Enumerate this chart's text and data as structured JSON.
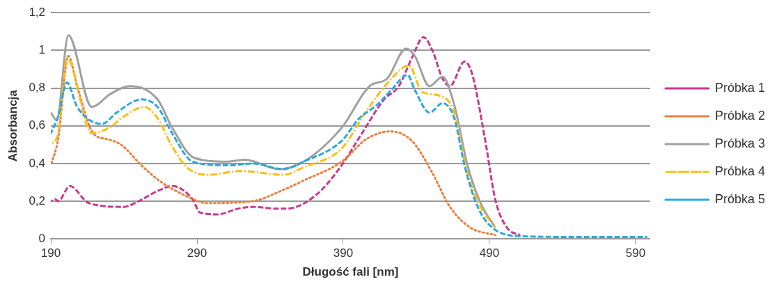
{
  "chart_data": {
    "type": "line",
    "xlabel": "Długość fali [nm]",
    "ylabel": "Absorbancja",
    "xlim": [
      190,
      600
    ],
    "xticks": [
      190,
      290,
      390,
      490,
      590
    ],
    "ylim": [
      0,
      1.2
    ],
    "yticks": [
      0,
      {
        "value": 0.2,
        "label": "0,2"
      },
      {
        "value": 0.4,
        "label": "0,4"
      },
      {
        "value": 0.6,
        "label": "0,6"
      },
      {
        "value": 0.8,
        "label": "0,8"
      },
      1,
      {
        "value": 1.2,
        "label": "1,2"
      }
    ],
    "grid": "y",
    "legend": "right",
    "marker": "none",
    "series": [
      {
        "name": "Próbka 1",
        "color": "#c8398f",
        "line_style": "dashed",
        "x": [
          190,
          193,
          195,
          203,
          216,
          240,
          250,
          262,
          273,
          287,
          292,
          304,
          318,
          328,
          345,
          351,
          371,
          388,
          402,
          418,
          428,
          437,
          445,
          451,
          458,
          463,
          473,
          478,
          487,
          494,
          502,
          511
        ],
        "values": [
          0.2,
          0.21,
          0.2,
          0.28,
          0.19,
          0.17,
          0.2,
          0.25,
          0.28,
          0.21,
          0.14,
          0.13,
          0.16,
          0.17,
          0.16,
          0.16,
          0.23,
          0.38,
          0.55,
          0.74,
          0.81,
          0.96,
          1.07,
          1.0,
          0.85,
          0.81,
          0.94,
          0.88,
          0.53,
          0.21,
          0.06,
          0.02
        ]
      },
      {
        "name": "Próbka 2",
        "color": "#ee7d3b",
        "line_style": "dotted",
        "x": [
          190,
          195,
          202,
          208,
          219,
          228,
          238,
          252,
          264,
          282,
          297,
          328,
          349,
          363,
          389,
          406,
          422,
          437,
          451,
          463,
          477,
          494
        ],
        "values": [
          0.39,
          0.53,
          0.97,
          0.81,
          0.56,
          0.53,
          0.5,
          0.39,
          0.31,
          0.23,
          0.19,
          0.2,
          0.26,
          0.31,
          0.41,
          0.53,
          0.57,
          0.52,
          0.35,
          0.17,
          0.06,
          0.02
        ]
      },
      {
        "name": "Próbka 3",
        "color": "#a0a0a0",
        "line_style": "solid",
        "x": [
          190,
          194,
          202,
          218,
          231,
          244,
          263,
          273,
          288,
          311,
          323,
          346,
          363,
          389,
          408,
          420,
          433,
          439,
          449,
          458,
          466,
          475,
          484,
          494
        ],
        "values": [
          0.67,
          0.63,
          1.08,
          0.7,
          0.77,
          0.81,
          0.74,
          0.59,
          0.43,
          0.41,
          0.42,
          0.37,
          0.41,
          0.59,
          0.81,
          0.85,
          1.01,
          0.97,
          0.81,
          0.86,
          0.71,
          0.39,
          0.19,
          0.06
        ]
      },
      {
        "name": "Próbka 4",
        "color": "#fbbd16",
        "line_style": "dashdot",
        "x": [
          190,
          195,
          198,
          201,
          218,
          230,
          240,
          254,
          263,
          273,
          283,
          297,
          320,
          349,
          363,
          389,
          406,
          423,
          435,
          444,
          456,
          466,
          475,
          484,
          494
        ],
        "values": [
          0.5,
          0.56,
          0.77,
          0.96,
          0.56,
          0.59,
          0.65,
          0.7,
          0.64,
          0.49,
          0.38,
          0.34,
          0.36,
          0.34,
          0.38,
          0.48,
          0.68,
          0.85,
          0.92,
          0.78,
          0.76,
          0.67,
          0.35,
          0.17,
          0.06
        ]
      },
      {
        "name": "Próbka 5",
        "color": "#28a9df",
        "line_style": "dashed",
        "x": [
          190,
          195,
          201,
          208,
          225,
          235,
          252,
          263,
          273,
          287,
          311,
          328,
          349,
          363,
          389,
          401,
          413,
          423,
          434,
          439,
          449,
          458,
          466,
          473,
          482,
          492,
          510,
          550,
          598
        ],
        "values": [
          0.56,
          0.65,
          0.83,
          0.7,
          0.61,
          0.67,
          0.74,
          0.7,
          0.56,
          0.41,
          0.39,
          0.4,
          0.37,
          0.41,
          0.52,
          0.64,
          0.71,
          0.79,
          0.87,
          0.79,
          0.67,
          0.72,
          0.64,
          0.39,
          0.17,
          0.06,
          0.015,
          0.01,
          0.01
        ]
      }
    ]
  }
}
